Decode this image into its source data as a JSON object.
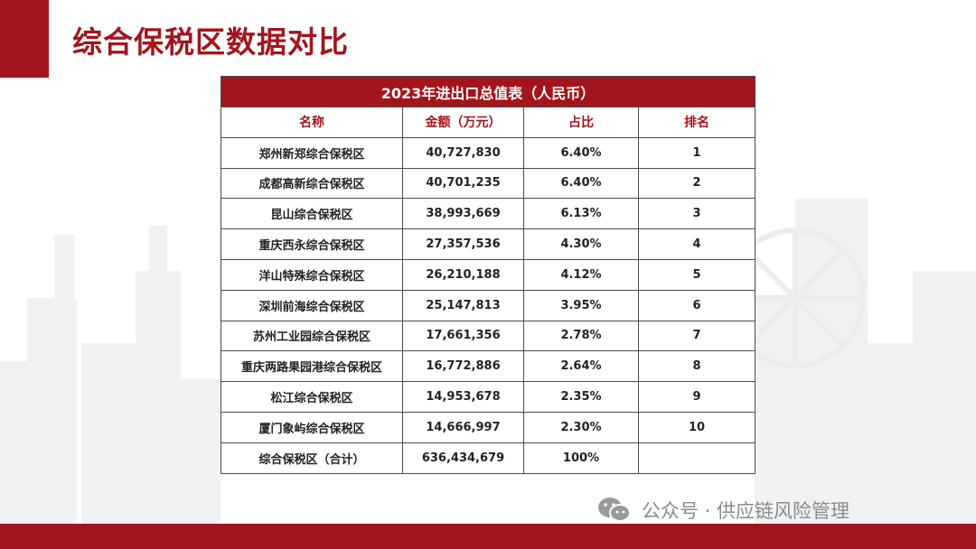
{
  "slide_title": "综合保税区数据对比",
  "table": {
    "caption": "2023年进出口总值表（人民币）",
    "headers": [
      "名称",
      "金额（万元）",
      "占比",
      "排名"
    ],
    "rows": [
      {
        "name": "郑州新郑综合保税区",
        "amount": "40,727,830",
        "share": "6.40%",
        "rank": "1"
      },
      {
        "name": "成都高新综合保税区",
        "amount": "40,701,235",
        "share": "6.40%",
        "rank": "2"
      },
      {
        "name": "昆山综合保税区",
        "amount": "38,993,669",
        "share": "6.13%",
        "rank": "3"
      },
      {
        "name": "重庆西永综合保税区",
        "amount": "27,357,536",
        "share": "4.30%",
        "rank": "4"
      },
      {
        "name": "洋山特殊综合保税区",
        "amount": "26,210,188",
        "share": "4.12%",
        "rank": "5"
      },
      {
        "name": "深圳前海综合保税区",
        "amount": "25,147,813",
        "share": "3.95%",
        "rank": "6"
      },
      {
        "name": "苏州工业园综合保税区",
        "amount": "17,661,356",
        "share": "2.78%",
        "rank": "7"
      },
      {
        "name": "重庆两路果园港综合保税区",
        "amount": "16,772,886",
        "share": "2.64%",
        "rank": "8"
      },
      {
        "name": "松江综合保税区",
        "amount": "14,953,678",
        "share": "2.35%",
        "rank": "9"
      },
      {
        "name": "厦门象屿综合保税区",
        "amount": "14,666,997",
        "share": "2.30%",
        "rank": "10"
      },
      {
        "name": "综合保税区（合计）",
        "amount": "636,434,679",
        "share": "100%",
        "rank": ""
      }
    ]
  },
  "watermark": {
    "text": "公众号 · 供应链风险管理",
    "icon": "wechat-icon"
  },
  "colors": {
    "accent": "#a3151c",
    "watermark": "#8a8a8a"
  }
}
